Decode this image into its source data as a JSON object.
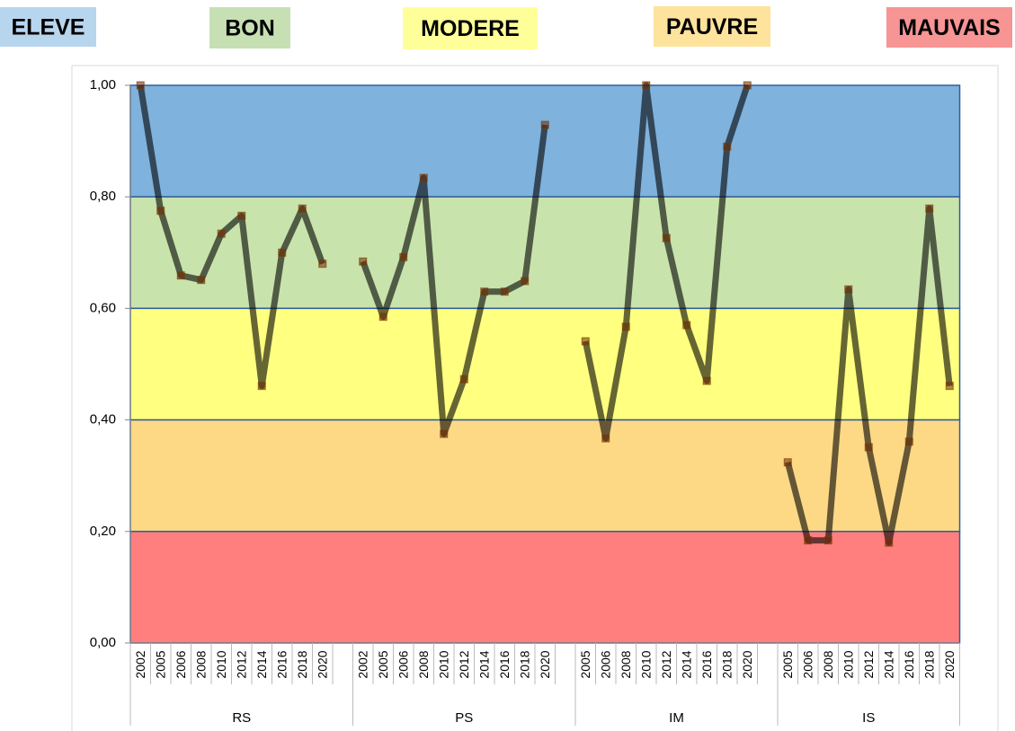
{
  "chart_data": {
    "type": "line",
    "bands": [
      {
        "label": "ELEVE",
        "from": 0.8,
        "to": 1.0,
        "color": "#7fb2dc",
        "legend_color": "#b8d5ee"
      },
      {
        "label": "BON",
        "from": 0.6,
        "to": 0.8,
        "color": "#c9e3ac",
        "legend_color": "#c6e0b4"
      },
      {
        "label": "MODERE",
        "from": 0.4,
        "to": 0.6,
        "color": "#ffff80",
        "legend_color": "#ffff99"
      },
      {
        "label": "PAUVRE",
        "from": 0.2,
        "to": 0.4,
        "color": "#fdd986",
        "legend_color": "#fde39c"
      },
      {
        "label": "MAUVAIS",
        "from": 0.0,
        "to": 0.2,
        "color": "#ff7f7f",
        "legend_color": "#f79494"
      }
    ],
    "series": [
      {
        "name": "RS",
        "categories": [
          "2002",
          "2005",
          "2006",
          "2008",
          "2010",
          "2012",
          "2014",
          "2016",
          "2018",
          "2020"
        ],
        "values": [
          1.0,
          0.775,
          0.659,
          0.651,
          0.734,
          0.766,
          0.461,
          0.7,
          0.779,
          0.68
        ]
      },
      {
        "name": "PS",
        "categories": [
          "2002",
          "2005",
          "2006",
          "2008",
          "2010",
          "2012",
          "2014",
          "2016",
          "2018",
          "2020"
        ],
        "values": [
          0.684,
          0.585,
          0.692,
          0.834,
          0.375,
          0.473,
          0.63,
          0.63,
          0.649,
          0.929
        ]
      },
      {
        "name": "IM",
        "categories": [
          "2005",
          "2006",
          "2008",
          "2010",
          "2012",
          "2014",
          "2016",
          "2018",
          "2020"
        ],
        "values": [
          0.541,
          0.367,
          0.567,
          1.0,
          0.726,
          0.57,
          0.47,
          0.89,
          1.0
        ]
      },
      {
        "name": "IS",
        "categories": [
          "2005",
          "2006",
          "2008",
          "2010",
          "2012",
          "2014",
          "2016",
          "2018",
          "2020"
        ],
        "values": [
          0.324,
          0.184,
          0.184,
          0.634,
          0.351,
          0.18,
          0.361,
          0.779,
          0.461
        ]
      }
    ],
    "ylim": [
      0,
      1
    ],
    "yticks": [
      {
        "value": 0,
        "label": "0,00"
      },
      {
        "value": 0.2,
        "label": "0,20"
      },
      {
        "value": 0.4,
        "label": "0,40"
      },
      {
        "value": 0.6,
        "label": "0,60"
      },
      {
        "value": 0.8,
        "label": "0,80"
      },
      {
        "value": 1,
        "label": "1,00"
      }
    ]
  }
}
